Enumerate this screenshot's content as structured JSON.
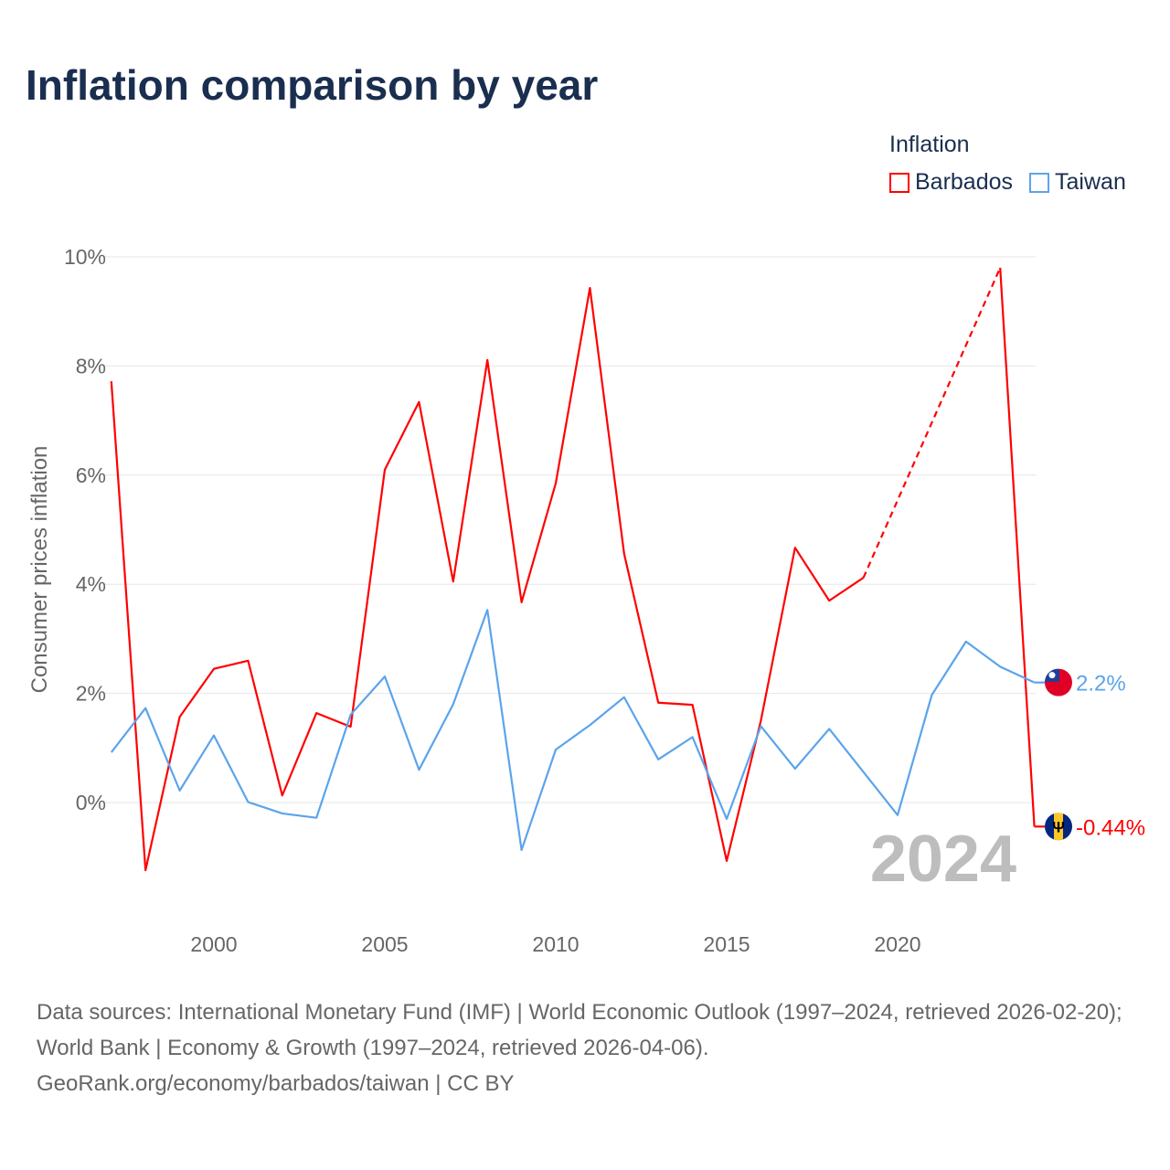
{
  "title": "Inflation comparison by year",
  "legend": {
    "title": "Inflation",
    "items": [
      {
        "name": "Barbados",
        "color": "#ff0000"
      },
      {
        "name": "Taiwan",
        "color": "#5ba4ec"
      }
    ]
  },
  "chart_data": {
    "type": "line",
    "title": "Inflation comparison by year",
    "ylabel": "Consumer prices inflation",
    "xlabel": "",
    "ylim": [
      -2,
      10
    ],
    "xlim": [
      1997,
      2024
    ],
    "yticks": [
      "0%",
      "2%",
      "4%",
      "6%",
      "8%",
      "10%"
    ],
    "ytick_values": [
      0,
      2,
      4,
      6,
      8,
      10
    ],
    "xticks": [
      "2000",
      "2005",
      "2010",
      "2015",
      "2020"
    ],
    "xtick_values": [
      2000,
      2005,
      2010,
      2015,
      2020
    ],
    "grid": true,
    "legend_position": "top-right",
    "year_label": "2024",
    "x": [
      1997,
      1998,
      1999,
      2000,
      2001,
      2002,
      2003,
      2004,
      2005,
      2006,
      2007,
      2008,
      2009,
      2010,
      2011,
      2012,
      2013,
      2014,
      2015,
      2016,
      2017,
      2018,
      2019,
      2020,
      2021,
      2022,
      2023,
      2024
    ],
    "series": [
      {
        "name": "Barbados",
        "color": "#ff0000",
        "end_label": "-0.44%",
        "values": [
          7.72,
          -1.24,
          1.57,
          2.45,
          2.6,
          0.13,
          1.64,
          1.39,
          6.1,
          7.34,
          4.05,
          8.11,
          3.67,
          5.85,
          9.43,
          4.56,
          1.83,
          1.79,
          -1.07,
          1.5,
          4.67,
          3.7,
          4.12,
          null,
          null,
          null,
          9.8,
          -0.44
        ]
      },
      {
        "name": "Taiwan",
        "color": "#5ba4ec",
        "end_label": "2.2%",
        "values": [
          0.92,
          1.73,
          0.22,
          1.23,
          0.01,
          -0.2,
          -0.28,
          1.61,
          2.31,
          0.6,
          1.8,
          3.53,
          -0.87,
          0.97,
          1.42,
          1.93,
          0.79,
          1.2,
          -0.3,
          1.4,
          0.62,
          1.35,
          0.56,
          -0.23,
          1.97,
          2.95,
          2.49,
          2.2
        ]
      }
    ]
  },
  "footer": {
    "sources": "Data sources: International Monetary Fund (IMF) | World Economic Outlook (1997–2024, retrieved 2026-02-20); World Bank | Economy & Growth (1997–2024, retrieved 2026-04-06).",
    "link": "GeoRank.org/economy/barbados/taiwan | CC BY"
  }
}
